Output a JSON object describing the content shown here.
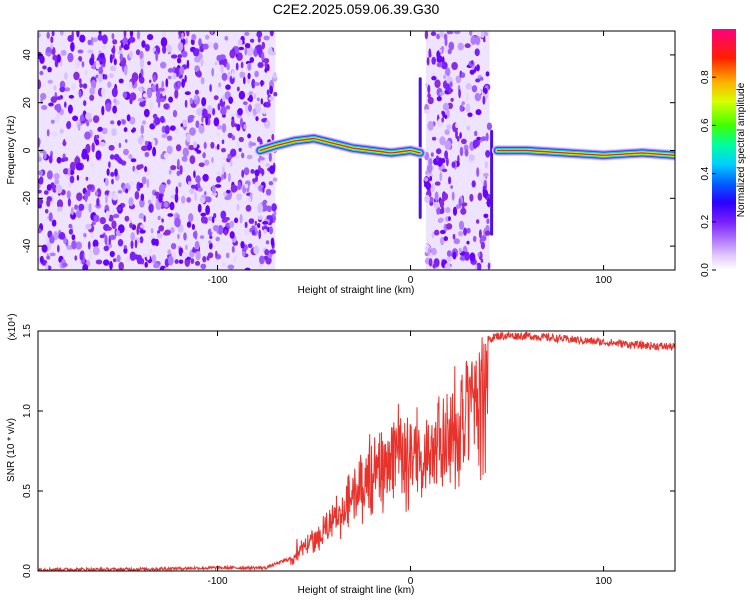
{
  "title": "C2E2.2025.059.06.39.G30",
  "chart_data": [
    {
      "type": "heatmap",
      "xlabel": "Height of straight line (km)",
      "ylabel": "Frequency (Hz)",
      "xlim": [
        -193,
        137
      ],
      "ylim": [
        -50,
        50
      ],
      "x_ticks": [
        -100,
        0,
        100
      ],
      "x_tick_labels": [
        "-100",
        "0",
        "100"
      ],
      "y_ticks": [
        -40,
        -20,
        0,
        20,
        40
      ],
      "y_tick_labels": [
        "-40",
        "-20",
        "0",
        "20",
        "40"
      ],
      "colorbar": {
        "label": "Normalized spectral amplitude",
        "range": [
          0,
          1
        ],
        "ticks": [
          0.0,
          0.2,
          0.4,
          0.6,
          0.8
        ],
        "tick_labels": [
          "0.0",
          "0.2",
          "0.4",
          "0.6",
          "0.8"
        ],
        "colors": [
          "#ffffff",
          "#d6a8ff",
          "#8a2be2",
          "#3a1cff",
          "#0060ff",
          "#00d0ff",
          "#00ff7f",
          "#80ff00",
          "#ffff00",
          "#ff8000",
          "#ff0000",
          "#ff0080"
        ]
      },
      "regions": [
        {
          "kind": "noise",
          "x_range": [
            -193,
            -70
          ],
          "freq_range": [
            -50,
            50
          ]
        },
        {
          "kind": "signal_band",
          "points": [
            [
              -78,
              0
            ],
            [
              -70,
              2
            ],
            [
              -60,
              4
            ],
            [
              -50,
              5
            ],
            [
              -40,
              3
            ],
            [
              -30,
              1
            ],
            [
              -20,
              0
            ],
            [
              -10,
              -1
            ],
            [
              0,
              0
            ],
            [
              5,
              -1
            ]
          ]
        },
        {
          "kind": "noise",
          "x_range": [
            8,
            41
          ],
          "freq_range": [
            -50,
            50
          ]
        },
        {
          "kind": "signal_band",
          "points": [
            [
              45,
              0
            ],
            [
              60,
              0
            ],
            [
              80,
              -1
            ],
            [
              100,
              -2
            ],
            [
              120,
              -1
            ],
            [
              137,
              -2
            ]
          ]
        }
      ],
      "grid": false
    },
    {
      "type": "line",
      "xlabel": "Height of straight line (km)",
      "ylabel": "SNR (10 * v/v)",
      "multiplier_label": "(x10⁴)",
      "xlim": [
        -193,
        137
      ],
      "ylim": [
        0,
        1.5
      ],
      "x_ticks": [
        -100,
        0,
        100
      ],
      "x_tick_labels": [
        "-100",
        "0",
        "100"
      ],
      "y_ticks": [
        0.0,
        0.5,
        1.0,
        1.5
      ],
      "y_tick_labels": [
        "0.0",
        "0.5",
        "1.0",
        "1.5"
      ],
      "series": [
        {
          "color": "#e8322c",
          "envelope": [
            {
              "x": -193,
              "y": 0.01
            },
            {
              "x": -150,
              "y": 0.01
            },
            {
              "x": -100,
              "y": 0.02
            },
            {
              "x": -75,
              "y": 0.02
            },
            {
              "x": -62,
              "y": 0.08
            },
            {
              "x": -55,
              "y": 0.2
            },
            {
              "x": -45,
              "y": 0.35
            },
            {
              "x": -35,
              "y": 0.55
            },
            {
              "x": -25,
              "y": 0.75
            },
            {
              "x": -15,
              "y": 0.9
            },
            {
              "x": -5,
              "y": 0.95
            },
            {
              "x": 5,
              "y": 1.0
            },
            {
              "x": 15,
              "y": 1.1
            },
            {
              "x": 25,
              "y": 1.25
            },
            {
              "x": 35,
              "y": 1.42
            },
            {
              "x": 45,
              "y": 1.47
            },
            {
              "x": 60,
              "y": 1.47
            },
            {
              "x": 80,
              "y": 1.45
            },
            {
              "x": 100,
              "y": 1.43
            },
            {
              "x": 120,
              "y": 1.41
            },
            {
              "x": 137,
              "y": 1.4
            }
          ]
        }
      ],
      "grid": false
    }
  ]
}
